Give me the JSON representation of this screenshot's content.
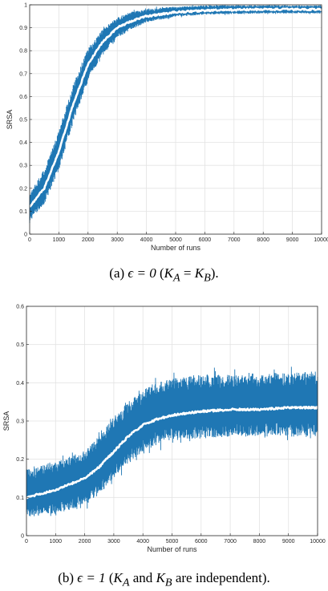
{
  "chart_data": [
    {
      "type": "line",
      "title": "",
      "xlabel": "Number of runs",
      "ylabel": "SRSA",
      "xlim": [
        0,
        10000
      ],
      "ylim": [
        0,
        1
      ],
      "xticks": [
        0,
        1000,
        2000,
        3000,
        4000,
        5000,
        6000,
        7000,
        8000,
        9000,
        10000
      ],
      "xtick_labels": [
        "0",
        "1000",
        "2000",
        "3000",
        "4000",
        "5000",
        "6000",
        "7000",
        "8000",
        "9000",
        "10000"
      ],
      "yticks": [
        0,
        0.1,
        0.2,
        0.3,
        0.4,
        0.5,
        0.6,
        0.7,
        0.8,
        0.9,
        1
      ],
      "ytick_labels": [
        "0",
        "0.1",
        "0.2",
        "0.3",
        "0.4",
        "0.5",
        "0.6",
        "0.7",
        "0.8",
        "0.9",
        "1"
      ],
      "grid": true,
      "series": [
        {
          "role": "band",
          "color": "#1f77b4",
          "x": [
            0,
            500,
            1000,
            1500,
            2000,
            2500,
            3000,
            3500,
            4000,
            5000,
            6000,
            7000,
            8000,
            9000,
            10000
          ],
          "lower": [
            0.05,
            0.12,
            0.27,
            0.48,
            0.66,
            0.78,
            0.85,
            0.89,
            0.92,
            0.945,
            0.955,
            0.958,
            0.96,
            0.96,
            0.96
          ],
          "upper": [
            0.19,
            0.29,
            0.46,
            0.67,
            0.82,
            0.9,
            0.95,
            0.975,
            0.985,
            0.995,
            1.0,
            1.0,
            1.0,
            1.0,
            1.0
          ]
        },
        {
          "role": "mean",
          "color": "#ffffff",
          "x": [
            0,
            500,
            1000,
            1500,
            2000,
            2500,
            3000,
            3500,
            4000,
            5000,
            6000,
            7000,
            8000,
            9000,
            10000
          ],
          "y": [
            0.12,
            0.2,
            0.36,
            0.57,
            0.74,
            0.84,
            0.9,
            0.93,
            0.95,
            0.968,
            0.975,
            0.978,
            0.98,
            0.98,
            0.98
          ]
        }
      ]
    },
    {
      "type": "line",
      "title": "",
      "xlabel": "Number of runs",
      "ylabel": "SRSA",
      "xlim": [
        0,
        10000
      ],
      "ylim": [
        0,
        0.6
      ],
      "xticks": [
        0,
        1000,
        2000,
        3000,
        4000,
        5000,
        6000,
        7000,
        8000,
        9000,
        10000
      ],
      "xtick_labels": [
        "0",
        "1000",
        "2000",
        "3000",
        "4000",
        "5000",
        "6000",
        "7000",
        "8000",
        "9000",
        "10000"
      ],
      "yticks": [
        0,
        0.1,
        0.2,
        0.3,
        0.4,
        0.5,
        0.6
      ],
      "ytick_labels": [
        "0",
        "0.1",
        "0.2",
        "0.3",
        "0.4",
        "0.5",
        "0.6"
      ],
      "grid": true,
      "series": [
        {
          "role": "band",
          "color": "#1f77b4",
          "x": [
            0,
            1000,
            2000,
            2500,
            3000,
            3500,
            4000,
            4500,
            5000,
            6000,
            7000,
            8000,
            9000,
            10000
          ],
          "lower": [
            0.04,
            0.05,
            0.07,
            0.1,
            0.14,
            0.18,
            0.21,
            0.23,
            0.24,
            0.245,
            0.25,
            0.25,
            0.25,
            0.25
          ],
          "upper": [
            0.18,
            0.2,
            0.23,
            0.27,
            0.32,
            0.36,
            0.39,
            0.41,
            0.42,
            0.43,
            0.43,
            0.435,
            0.435,
            0.44
          ]
        },
        {
          "role": "mean",
          "color": "#ffffff",
          "x": [
            0,
            1000,
            2000,
            2500,
            3000,
            3500,
            4000,
            4500,
            5000,
            6000,
            7000,
            8000,
            9000,
            10000
          ],
          "y": [
            0.1,
            0.12,
            0.15,
            0.18,
            0.22,
            0.26,
            0.29,
            0.305,
            0.315,
            0.325,
            0.33,
            0.33,
            0.335,
            0.335
          ]
        }
      ]
    }
  ],
  "captions": {
    "a": {
      "prefix": "(a) ",
      "eq": "ϵ = 0",
      "open": " (",
      "k1": "K",
      "k1sub": "A",
      "mid": " = ",
      "k2": "K",
      "k2sub": "B",
      "close": ")."
    },
    "b": {
      "prefix": "(b) ",
      "eq": "ϵ = 1",
      "open": " (",
      "k1": "K",
      "k1sub": "A",
      "mid": " and ",
      "k2": "K",
      "k2sub": "B",
      "close": " are independent)."
    }
  }
}
